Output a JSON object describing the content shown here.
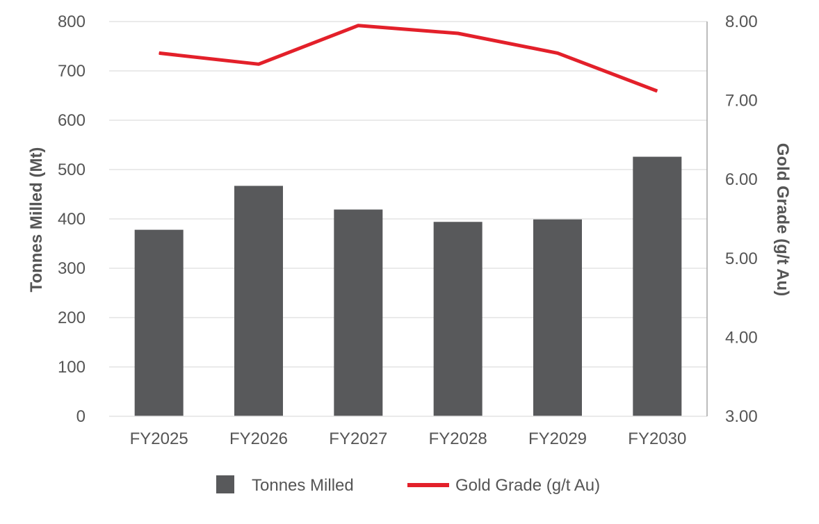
{
  "chart_data": {
    "type": "bar",
    "categories": [
      "FY2025",
      "FY2026",
      "FY2027",
      "FY2028",
      "FY2029",
      "FY2030"
    ],
    "series": [
      {
        "name": "Tonnes Milled",
        "type": "bar",
        "axis": "left",
        "values": [
          378,
          467,
          419,
          394,
          399,
          526
        ]
      },
      {
        "name": "Gold Grade (g/t Au)",
        "type": "line",
        "axis": "right",
        "values": [
          7.6,
          7.46,
          7.95,
          7.85,
          7.6,
          7.12
        ]
      }
    ],
    "ylabel": "Tonnes Milled (Mt)",
    "y2label": "Gold Grade (g/t Au)",
    "ylim": [
      0,
      800
    ],
    "yticks": [
      "0",
      "100",
      "200",
      "300",
      "400",
      "500",
      "600",
      "700",
      "800"
    ],
    "y2lim": [
      3.0,
      8.0
    ],
    "y2ticks": [
      "3.00",
      "4.00",
      "5.00",
      "6.00",
      "7.00",
      "8.00"
    ],
    "grid": true,
    "legend": "bottom",
    "colors": {
      "bar": "#58595b",
      "line": "#e3202a",
      "grid": "#e3e3e3",
      "text": "#555555",
      "axis": "#a6a6a6"
    }
  }
}
